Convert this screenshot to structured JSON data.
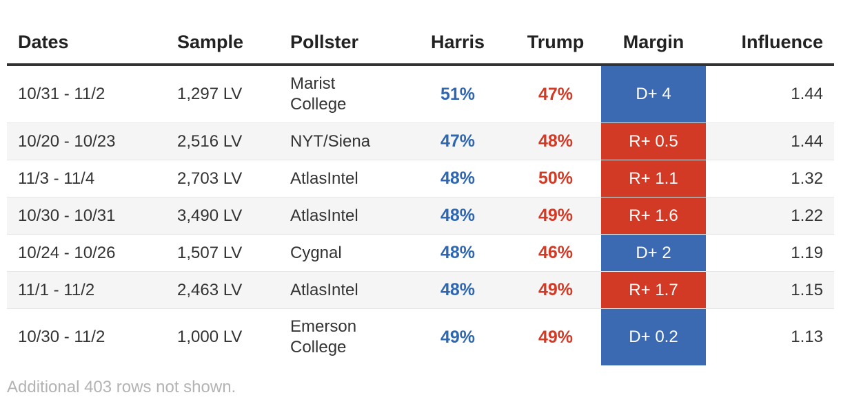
{
  "colors": {
    "harris": "#2e66b0",
    "trump": "#d23a26",
    "dem_margin_bg": "#3b6ab2",
    "rep_margin_bg": "#d23a26"
  },
  "table": {
    "headers": [
      "Dates",
      "Sample",
      "Pollster",
      "Harris",
      "Trump",
      "Margin",
      "Influence"
    ],
    "rows": [
      {
        "dates": "10/31 - 11/2",
        "sample": "1,297 LV",
        "pollster": "Marist College",
        "harris": "51%",
        "trump": "47%",
        "margin": "D+ 4",
        "party": "D",
        "influence": "1.44"
      },
      {
        "dates": "10/20 - 10/23",
        "sample": "2,516 LV",
        "pollster": "NYT/Siena",
        "harris": "47%",
        "trump": "48%",
        "margin": "R+ 0.5",
        "party": "R",
        "influence": "1.44"
      },
      {
        "dates": "11/3 - 11/4",
        "sample": "2,703 LV",
        "pollster": "AtlasIntel",
        "harris": "48%",
        "trump": "50%",
        "margin": "R+ 1.1",
        "party": "R",
        "influence": "1.32"
      },
      {
        "dates": "10/30 - 10/31",
        "sample": "3,490 LV",
        "pollster": "AtlasIntel",
        "harris": "48%",
        "trump": "49%",
        "margin": "R+ 1.6",
        "party": "R",
        "influence": "1.22"
      },
      {
        "dates": "10/24 - 10/26",
        "sample": "1,507 LV",
        "pollster": "Cygnal",
        "harris": "48%",
        "trump": "46%",
        "margin": "D+ 2",
        "party": "D",
        "influence": "1.19"
      },
      {
        "dates": "11/1 - 11/2",
        "sample": "2,463 LV",
        "pollster": "AtlasIntel",
        "harris": "48%",
        "trump": "49%",
        "margin": "R+ 1.7",
        "party": "R",
        "influence": "1.15"
      },
      {
        "dates": "10/30 - 11/2",
        "sample": "1,000 LV",
        "pollster": "Emerson College",
        "harris": "49%",
        "trump": "49%",
        "margin": "D+ 0.2",
        "party": "D",
        "influence": "1.13"
      }
    ]
  },
  "footer": {
    "note": "Additional 403 rows not shown."
  }
}
